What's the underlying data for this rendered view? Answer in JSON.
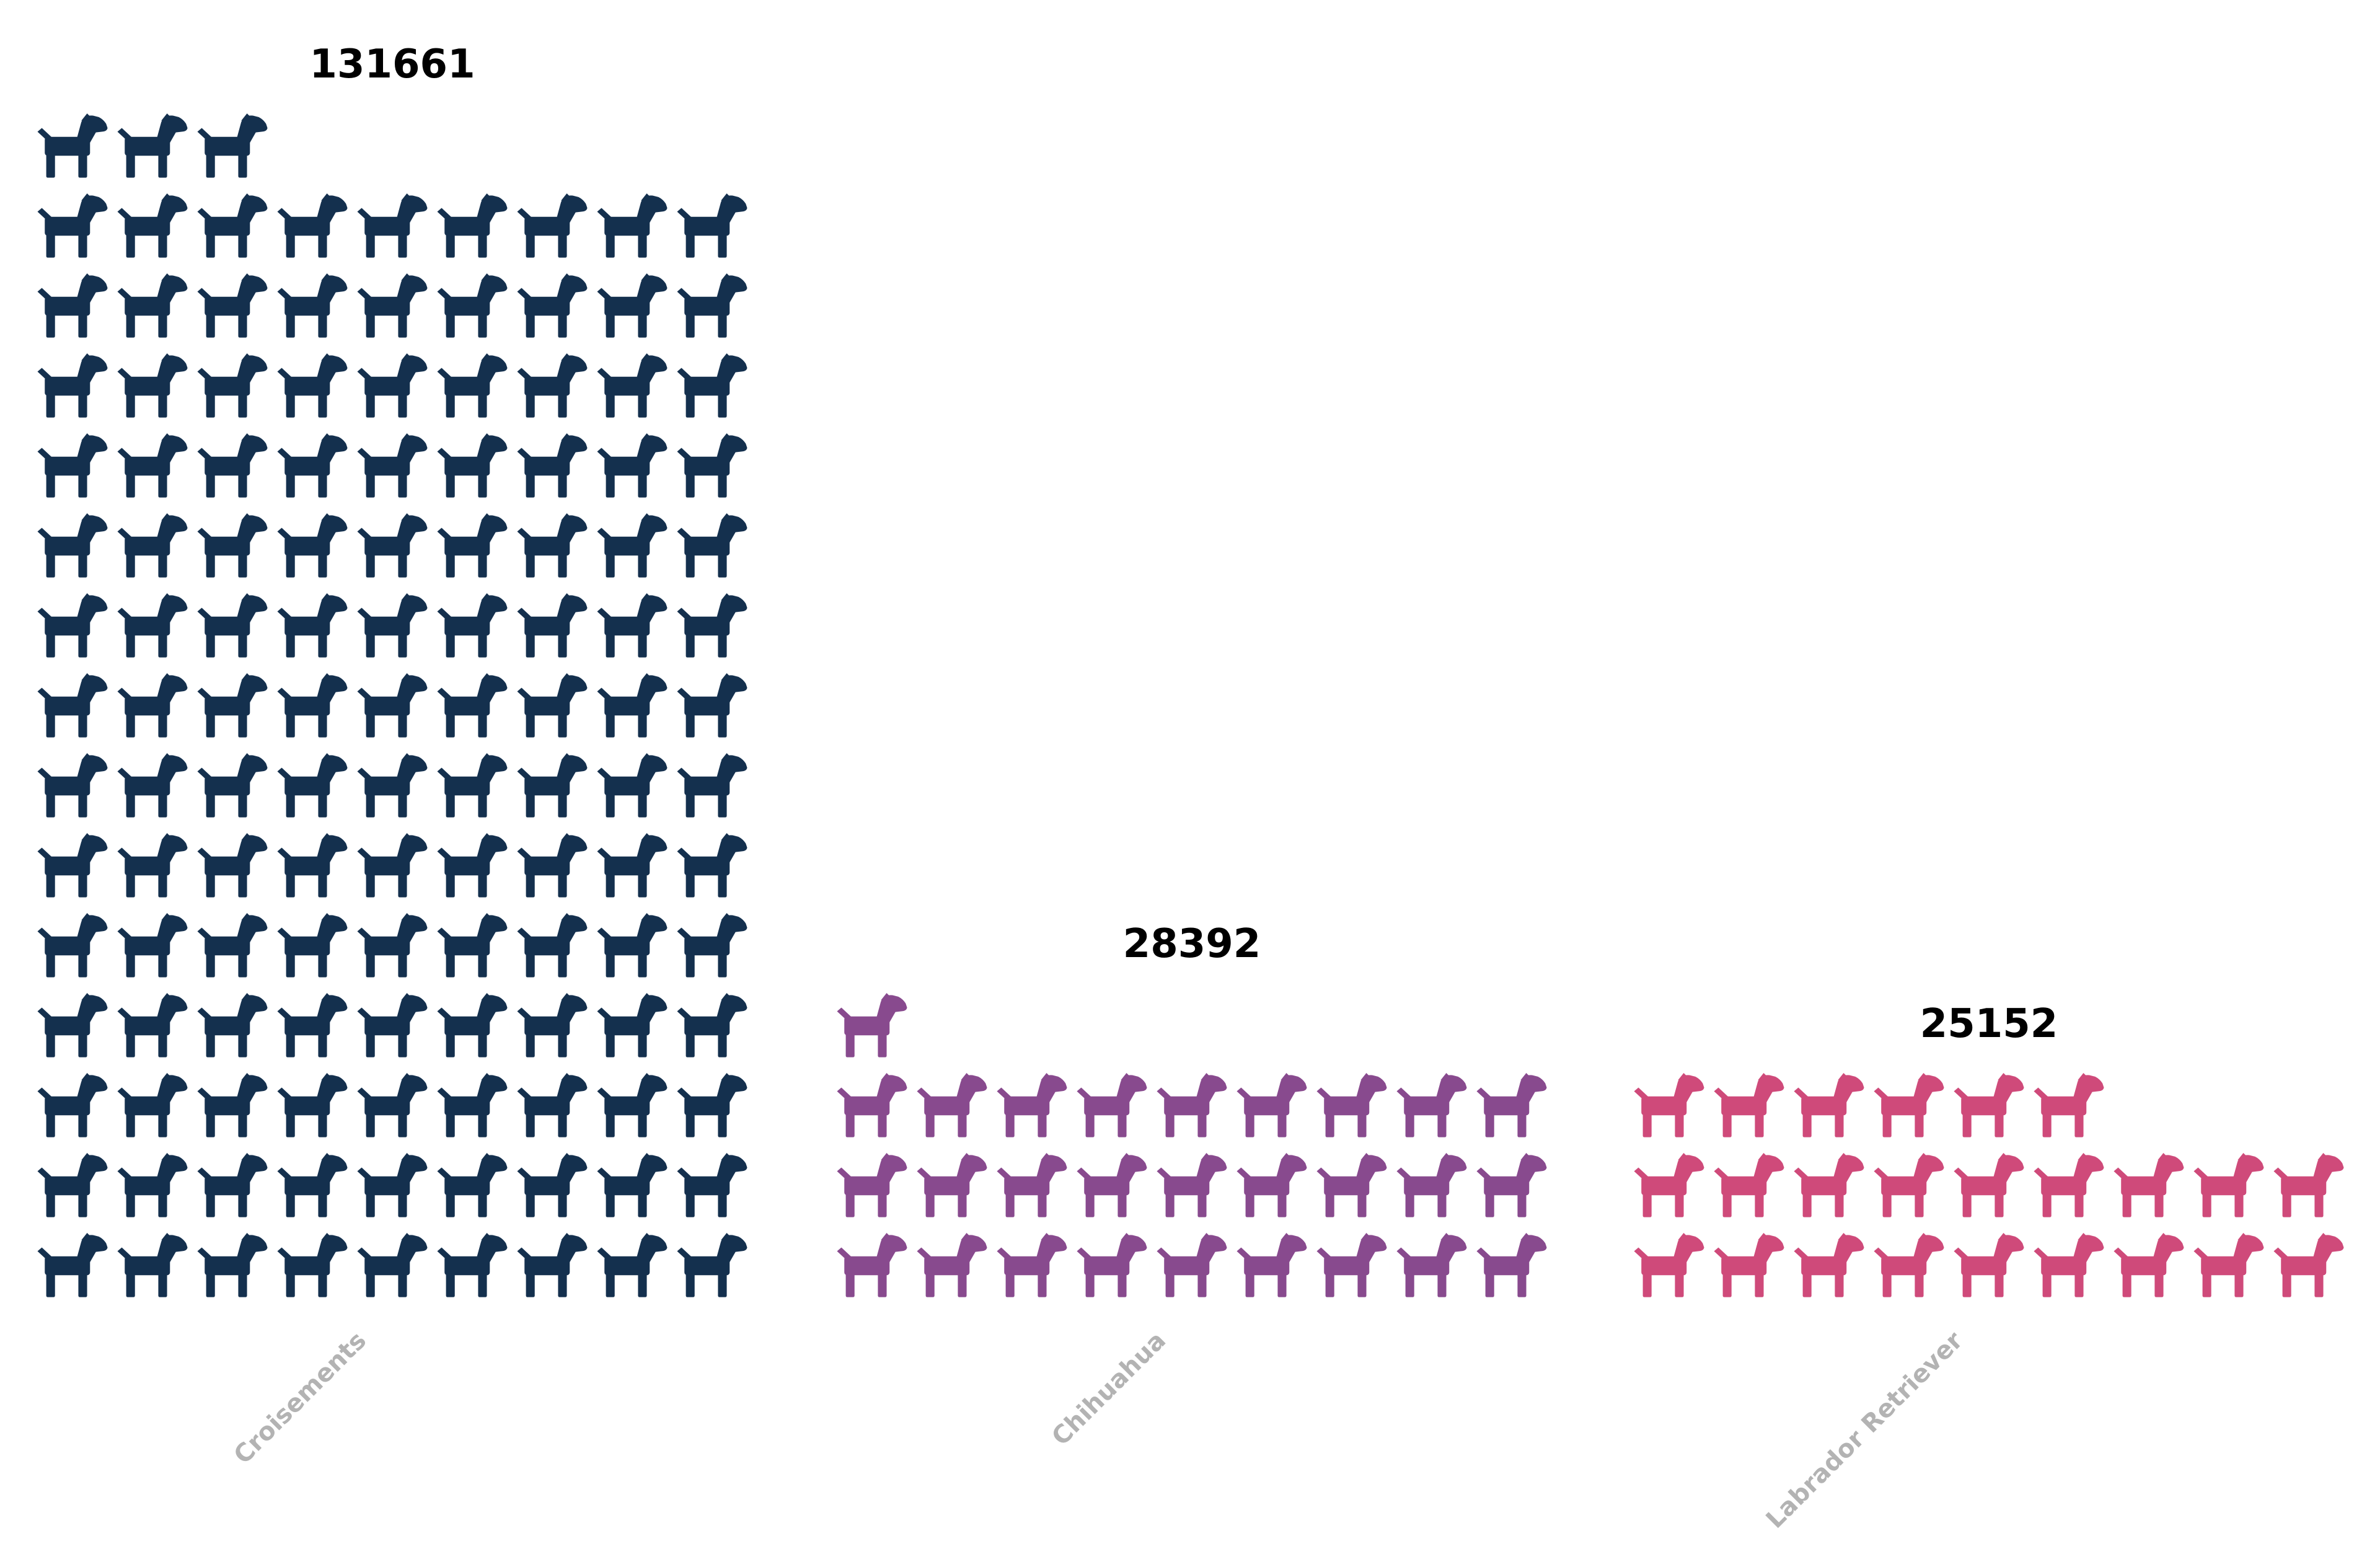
{
  "chart_data": {
    "type": "bar",
    "subtype": "pictogram",
    "icon": "dog-icon",
    "categories": [
      "Croisements",
      "Chihuahua",
      "Labrador Retriever"
    ],
    "values": [
      131661,
      28392,
      25152
    ],
    "value_labels": [
      "131661",
      "28392",
      "25152"
    ],
    "colors": [
      "#14304e",
      "#884a8e",
      "#cf4a7a"
    ],
    "title": "",
    "xlabel": "",
    "ylabel": "",
    "ylim": [
      0,
      135000
    ],
    "grid": false,
    "legend": "none",
    "icons_per_row": 9
  }
}
